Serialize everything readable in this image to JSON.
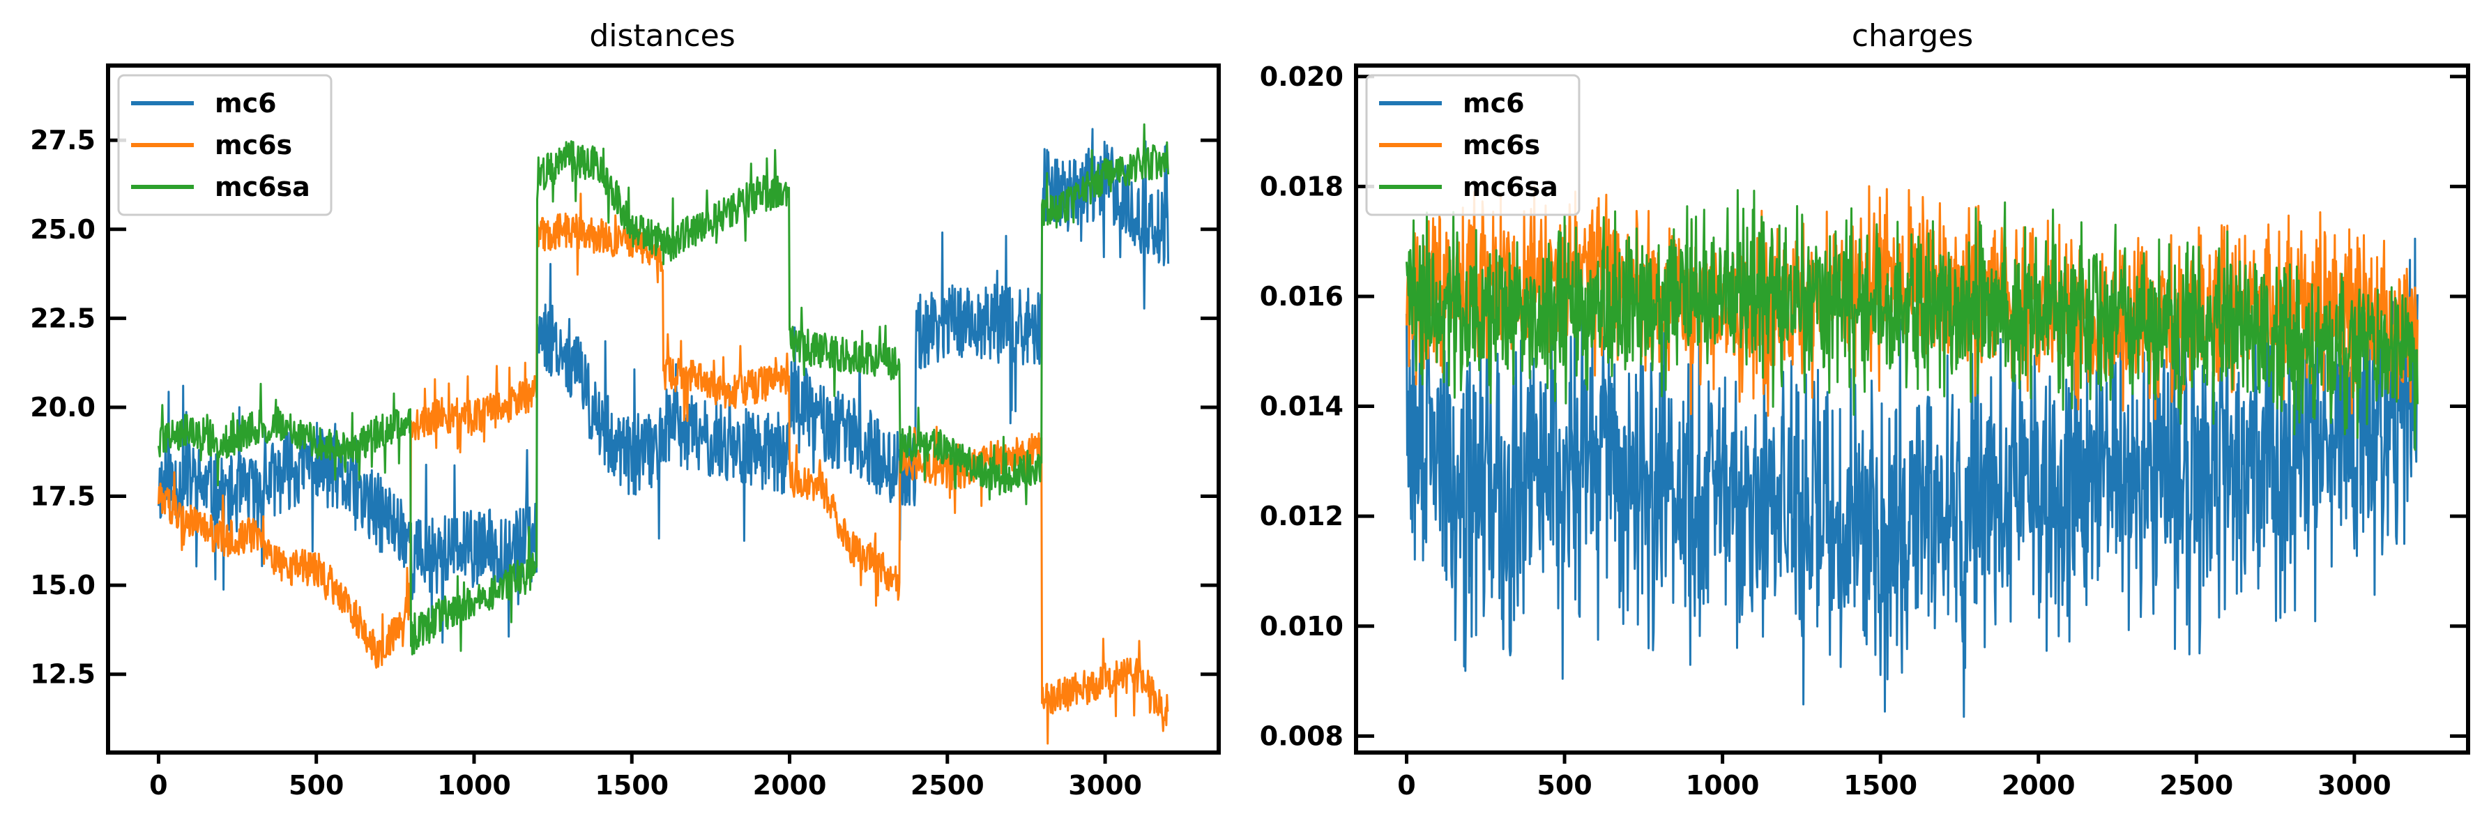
{
  "chart_data": [
    {
      "type": "line",
      "title": "distances",
      "xlabel": "",
      "ylabel": "",
      "xlim": [
        -160,
        3360
      ],
      "ylim": [
        10.3,
        29.6
      ],
      "xticks": [
        0,
        500,
        1000,
        1500,
        2000,
        2500,
        3000
      ],
      "yticks": [
        12.5,
        15.0,
        17.5,
        20.0,
        22.5,
        25.0,
        27.5
      ],
      "ytick_labels": [
        "12.5",
        "15.0",
        "17.5",
        "20.0",
        "22.5",
        "25.0",
        "27.5"
      ],
      "grid": false,
      "legend_position": "upper-left",
      "x_range": [
        0,
        3200
      ],
      "series": [
        {
          "name": "mc6",
          "color": "#1f77b4",
          "x": [
            0,
            100,
            200,
            300,
            400,
            500,
            600,
            700,
            799,
            800,
            900,
            1000,
            1100,
            1199,
            1200,
            1300,
            1400,
            1500,
            1599,
            1600,
            1700,
            1800,
            1900,
            1999,
            2000,
            2100,
            2200,
            2300,
            2399,
            2400,
            2500,
            2600,
            2700,
            2799,
            2800,
            2900,
            3000,
            3100,
            3200
          ],
          "values": [
            17.8,
            18.0,
            17.5,
            17.6,
            18.2,
            18.5,
            17.8,
            17.0,
            16.4,
            15.8,
            15.9,
            16.0,
            16.1,
            16.2,
            22.3,
            21.5,
            19.5,
            18.5,
            19.0,
            19.5,
            19.2,
            19.0,
            18.8,
            18.6,
            20.5,
            19.5,
            19.2,
            18.5,
            18.0,
            22.0,
            22.5,
            22.4,
            22.3,
            22.2,
            26.2,
            26.0,
            26.4,
            25.5,
            24.8
          ]
        },
        {
          "name": "mc6s",
          "color": "#ff7f0e",
          "x": [
            0,
            100,
            200,
            300,
            400,
            500,
            600,
            700,
            799,
            800,
            900,
            1000,
            1100,
            1199,
            1200,
            1300,
            1400,
            1500,
            1599,
            1600,
            1700,
            1800,
            1900,
            1999,
            2000,
            2100,
            2200,
            2300,
            2349,
            2350,
            2450,
            2550,
            2650,
            2799,
            2800,
            2900,
            3000,
            3100,
            3200
          ],
          "values": [
            17.5,
            16.8,
            16.3,
            16.4,
            15.5,
            15.5,
            14.5,
            13.0,
            14.5,
            19.5,
            19.8,
            19.7,
            20.0,
            20.5,
            24.8,
            25.0,
            24.8,
            24.6,
            24.3,
            21.0,
            20.8,
            20.4,
            20.6,
            20.8,
            18.0,
            17.8,
            16.0,
            15.5,
            15.0,
            18.5,
            18.3,
            18.2,
            18.6,
            18.8,
            11.7,
            12.0,
            12.3,
            12.5,
            11.4
          ]
        },
        {
          "name": "mc6sa",
          "color": "#2ca02c",
          "x": [
            0,
            100,
            200,
            300,
            400,
            500,
            600,
            700,
            799,
            800,
            900,
            1000,
            1100,
            1199,
            1200,
            1300,
            1400,
            1500,
            1599,
            1600,
            1700,
            1800,
            1900,
            1999,
            2000,
            2100,
            2200,
            2300,
            2349,
            2350,
            2450,
            2550,
            2650,
            2799,
            2800,
            2900,
            3000,
            3100,
            3200
          ],
          "values": [
            19.1,
            19.4,
            19.0,
            19.4,
            19.6,
            19.0,
            18.8,
            19.3,
            19.6,
            13.5,
            14.2,
            14.5,
            15.0,
            15.6,
            26.5,
            27.0,
            26.8,
            25.0,
            24.7,
            24.5,
            25.0,
            25.5,
            26.0,
            26.0,
            21.8,
            21.6,
            21.4,
            21.3,
            21.2,
            19.0,
            19.0,
            18.5,
            18.0,
            18.4,
            25.3,
            25.8,
            26.5,
            26.8,
            27.0
          ]
        }
      ]
    },
    {
      "type": "line",
      "title": "charges",
      "xlabel": "",
      "ylabel": "",
      "xlim": [
        -160,
        3360
      ],
      "ylim": [
        0.0077,
        0.0202
      ],
      "xticks": [
        0,
        500,
        1000,
        1500,
        2000,
        2500,
        3000
      ],
      "yticks": [
        0.008,
        0.01,
        0.012,
        0.014,
        0.016,
        0.018,
        0.02
      ],
      "ytick_labels": [
        "0.008",
        "0.010",
        "0.012",
        "0.014",
        "0.016",
        "0.018",
        "0.020"
      ],
      "grid": false,
      "legend_position": "upper-left",
      "x_range": [
        0,
        3200
      ],
      "series": [
        {
          "name": "mc6",
          "color": "#1f77b4",
          "x": [
            0,
            200,
            400,
            600,
            800,
            1000,
            1200,
            1400,
            1600,
            1800,
            2000,
            2200,
            2400,
            2600,
            2800,
            3000,
            3200
          ],
          "values": [
            0.0135,
            0.0125,
            0.0128,
            0.013,
            0.0125,
            0.0122,
            0.012,
            0.0118,
            0.012,
            0.0122,
            0.0125,
            0.0125,
            0.0128,
            0.013,
            0.013,
            0.0135,
            0.014
          ]
        },
        {
          "name": "mc6s",
          "color": "#ff7f0e",
          "x": [
            0,
            200,
            400,
            600,
            800,
            1000,
            1200,
            1400,
            1600,
            1800,
            2000,
            2200,
            2400,
            2600,
            2800,
            3000,
            3200
          ],
          "values": [
            0.016,
            0.0162,
            0.0163,
            0.0165,
            0.016,
            0.0158,
            0.0158,
            0.016,
            0.0165,
            0.016,
            0.0158,
            0.0155,
            0.0155,
            0.0158,
            0.0158,
            0.0155,
            0.0155
          ]
        },
        {
          "name": "mc6sa",
          "color": "#2ca02c",
          "x": [
            0,
            200,
            400,
            600,
            800,
            1000,
            1200,
            1400,
            1600,
            1800,
            2000,
            2200,
            2400,
            2600,
            2800,
            3000,
            3200
          ],
          "values": [
            0.016,
            0.0158,
            0.0157,
            0.0158,
            0.0158,
            0.016,
            0.016,
            0.0158,
            0.0157,
            0.0158,
            0.0157,
            0.0157,
            0.0155,
            0.0155,
            0.0152,
            0.015,
            0.015
          ]
        }
      ]
    }
  ]
}
